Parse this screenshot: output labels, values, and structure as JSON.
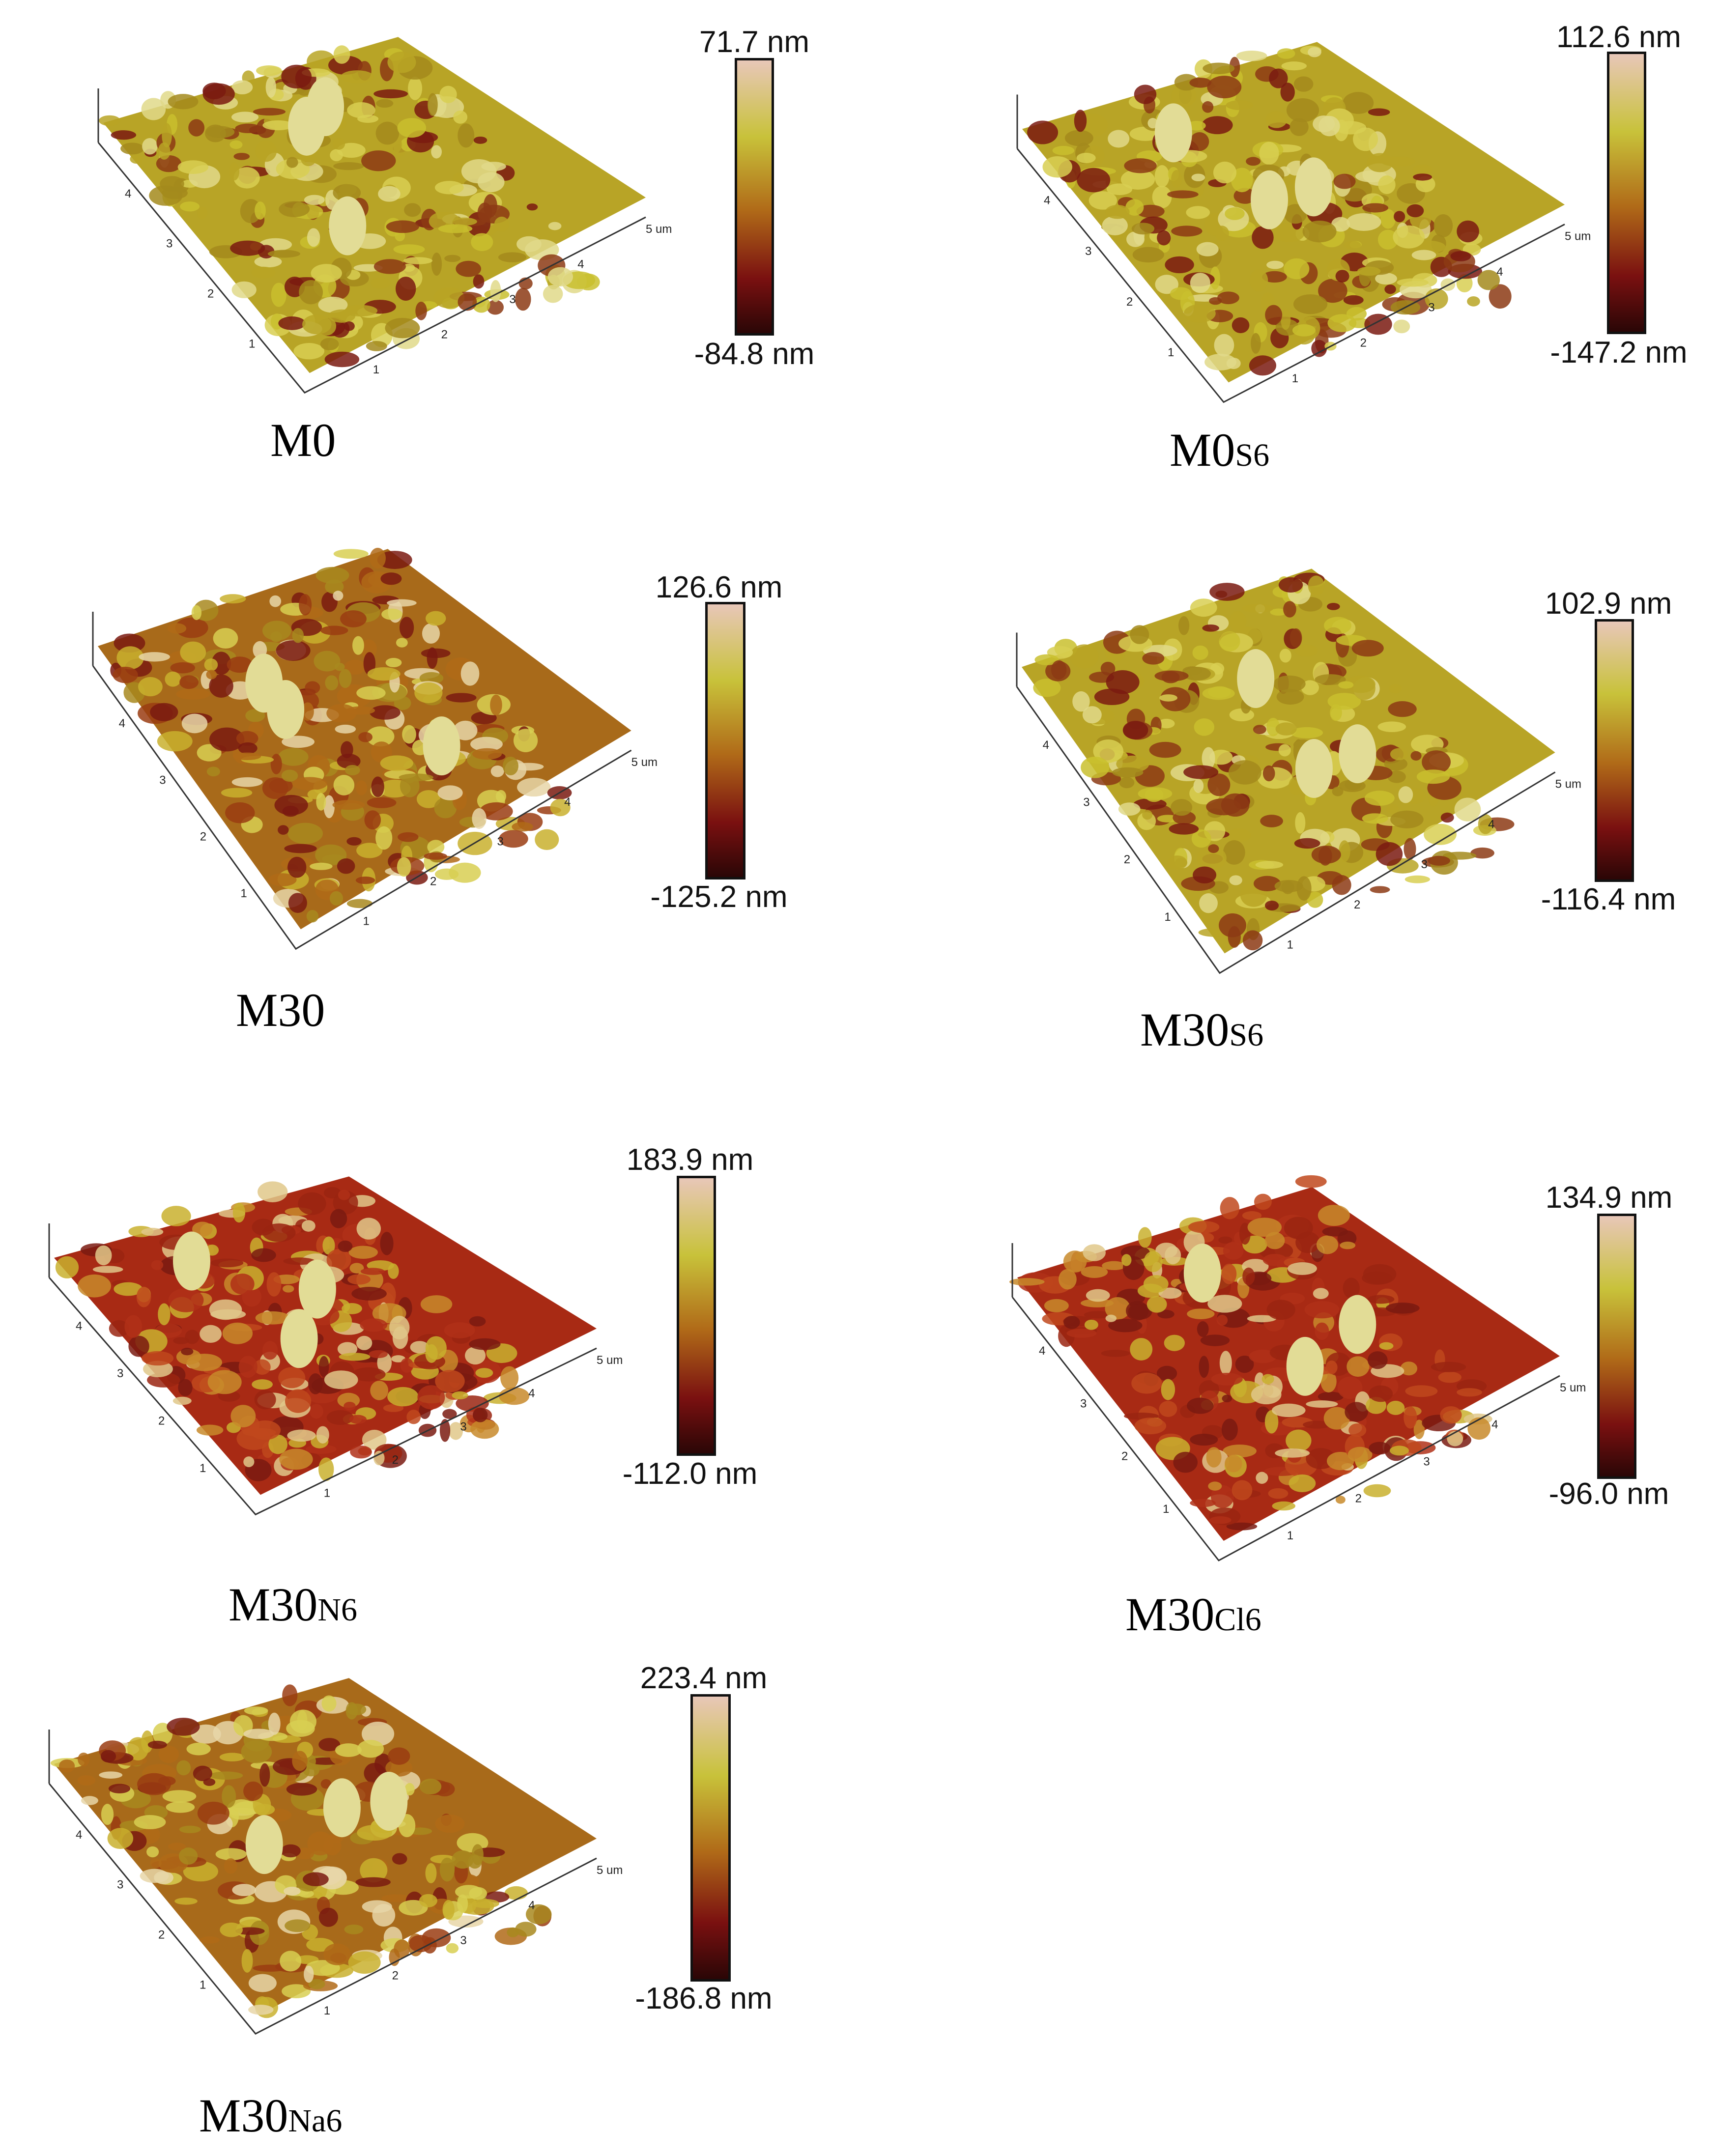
{
  "panels": [
    {
      "caption": "M0",
      "caption_sub": "",
      "colorbar_max": "71.7 nm",
      "colorbar_min": "-84.8 nm",
      "tone": "yellow",
      "axis_unit": "um",
      "x_ticks": [
        "1",
        "2",
        "3",
        "4",
        "5"
      ],
      "y_ticks": [
        "1",
        "2",
        "3",
        "4"
      ]
    },
    {
      "caption": "M0",
      "caption_sub": "S6",
      "colorbar_max": "112.6 nm",
      "colorbar_min": "-147.2 nm",
      "tone": "yellow",
      "axis_unit": "um",
      "x_ticks": [
        "1",
        "2",
        "3",
        "4",
        "5"
      ],
      "y_ticks": [
        "1",
        "2",
        "3",
        "4"
      ]
    },
    {
      "caption": "M30",
      "caption_sub": "",
      "colorbar_max": "126.6 nm",
      "colorbar_min": "-125.2 nm",
      "tone": "mixed",
      "axis_unit": "um",
      "x_ticks": [
        "1",
        "2",
        "3",
        "4",
        "5"
      ],
      "y_ticks": [
        "1",
        "2",
        "3",
        "4"
      ]
    },
    {
      "caption": "M30",
      "caption_sub": "S6",
      "colorbar_max": "102.9 nm",
      "colorbar_min": "-116.4 nm",
      "tone": "yellow",
      "axis_unit": "um",
      "x_ticks": [
        "1",
        "2",
        "3",
        "4",
        "5"
      ],
      "y_ticks": [
        "1",
        "2",
        "3",
        "4"
      ]
    },
    {
      "caption": "M30",
      "caption_sub": "N6",
      "colorbar_max": "183.9 nm",
      "colorbar_min": "-112.0 nm",
      "tone": "red",
      "axis_unit": "um",
      "x_ticks": [
        "1",
        "2",
        "3",
        "4",
        "5"
      ],
      "y_ticks": [
        "1",
        "2",
        "3",
        "4"
      ]
    },
    {
      "caption": "M30",
      "caption_sub": "Cl6",
      "colorbar_max": "134.9 nm",
      "colorbar_min": "-96.0 nm",
      "tone": "red",
      "axis_unit": "um",
      "x_ticks": [
        "1",
        "2",
        "3",
        "4",
        "5"
      ],
      "y_ticks": [
        "1",
        "2",
        "3",
        "4"
      ]
    },
    {
      "caption": "M30",
      "caption_sub": "Na6",
      "colorbar_max": "223.4 nm",
      "colorbar_min": "-186.8 nm",
      "tone": "mixed",
      "axis_unit": "um",
      "x_ticks": [
        "1",
        "2",
        "3",
        "4",
        "5"
      ],
      "y_ticks": [
        "1",
        "2",
        "3",
        "4"
      ]
    }
  ],
  "colors": {
    "colorbar_top": "#e8c7b8",
    "colorbar_upper": "#c8c23a",
    "colorbar_mid": "#b06a18",
    "colorbar_lower": "#7a1010",
    "colorbar_bottom": "#2a0606"
  }
}
